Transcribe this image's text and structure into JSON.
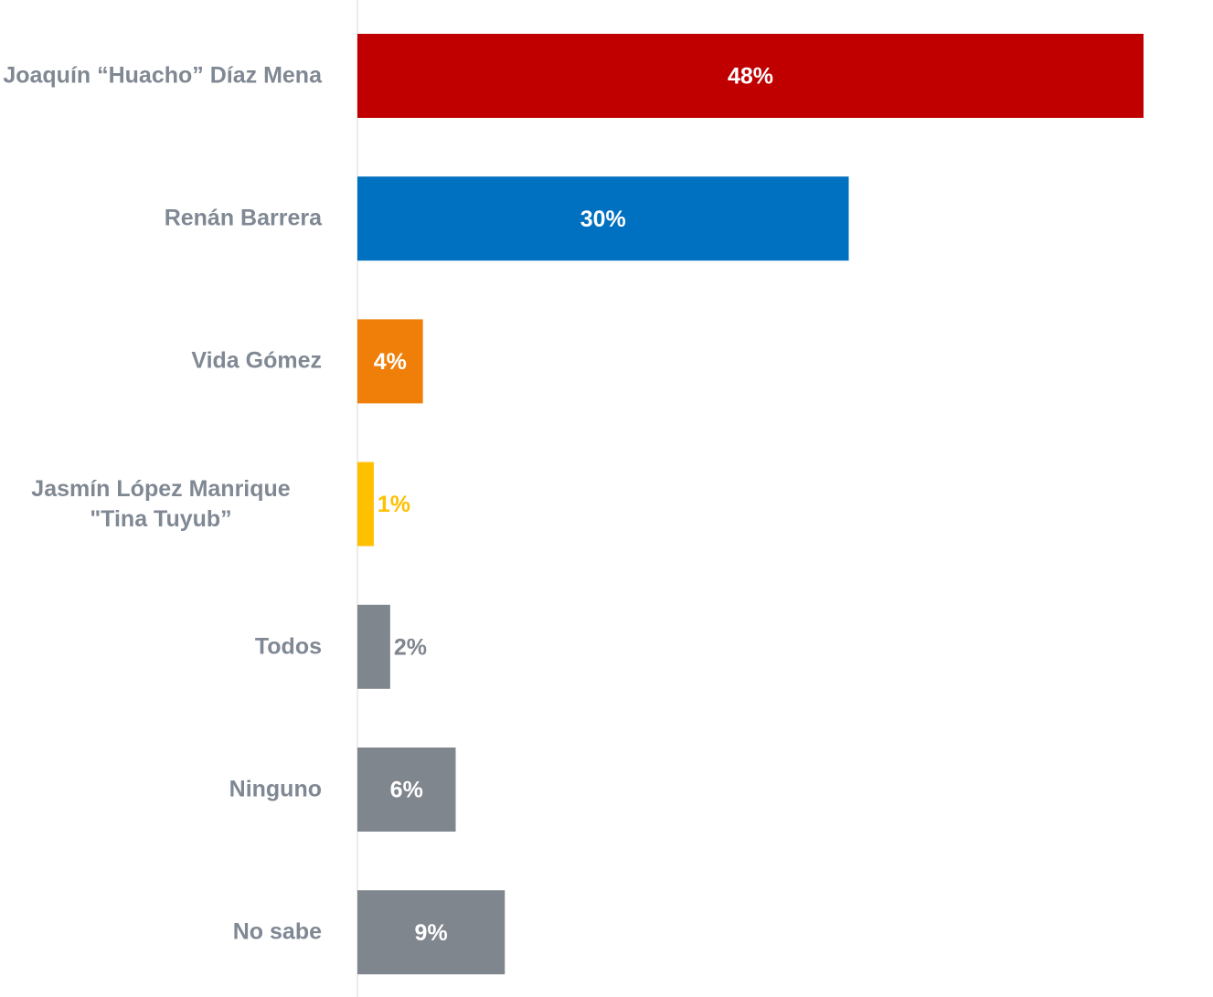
{
  "chart_data": {
    "type": "hbar",
    "categories": [
      "Joaquín “Huacho” Díaz Mena",
      "Renán Barrera",
      "Vida Gómez",
      "Jasmín López Manrique \"Tina Tuyub”",
      "Todos",
      "Ninguno",
      "No sabe"
    ],
    "values": [
      48,
      30,
      4,
      1,
      2,
      6,
      9
    ],
    "value_labels": [
      "48%",
      "30%",
      "4%",
      "1%",
      "2%",
      "6%",
      "9%"
    ],
    "colors": [
      "#c00000",
      "#0070c0",
      "#f07f09",
      "#ffc000",
      "#7f868e",
      "#7f868e",
      "#7f868e"
    ]
  }
}
